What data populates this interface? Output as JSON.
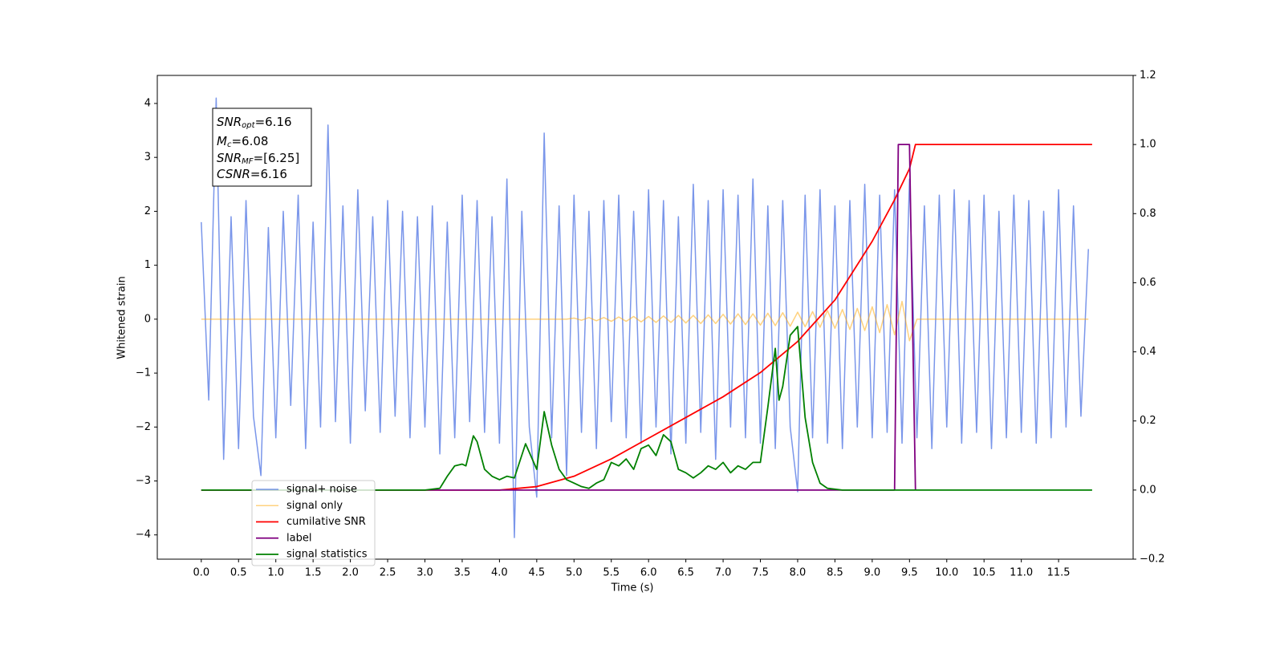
{
  "chart_data": {
    "type": "line",
    "x_label": "Time (s)",
    "y_label": "Whitened strain",
    "xlim": [
      -0.59,
      12.5
    ],
    "ylim": [
      -4.45,
      4.52
    ],
    "y2lim": [
      -0.2,
      1.2
    ],
    "xticks": [
      {
        "value": 0,
        "label": "0.0"
      },
      0.5,
      {
        "value": 1,
        "label": "1.0"
      },
      1.5,
      {
        "value": 2,
        "label": "2.0"
      },
      2.5,
      {
        "value": 3,
        "label": "3.0"
      },
      3.5,
      {
        "value": 4,
        "label": "4.0"
      },
      4.5,
      {
        "value": 5,
        "label": "5.0"
      },
      5.5,
      {
        "value": 6,
        "label": "6.0"
      },
      6.5,
      {
        "value": 7,
        "label": "7.0"
      },
      7.5,
      {
        "value": 8,
        "label": "8.0"
      },
      8.5,
      {
        "value": 9,
        "label": "9.0"
      },
      9.5,
      {
        "value": 10,
        "label": "10.0"
      },
      10.5,
      {
        "value": 11,
        "label": "11.0"
      },
      11.5
    ],
    "yticks": [
      {
        "value": -4,
        "label": "−4"
      },
      {
        "value": -3,
        "label": "−3"
      },
      {
        "value": -2,
        "label": "−2"
      },
      {
        "value": -1,
        "label": "−1"
      },
      0,
      1,
      2,
      3,
      4
    ],
    "y2ticks": [
      {
        "value": -0.2,
        "label": "−0.2"
      },
      {
        "value": 0,
        "label": "0.0"
      },
      0.2,
      0.4,
      0.6,
      0.8,
      {
        "value": 1,
        "label": "1.0"
      },
      1.2
    ],
    "grid": false,
    "legend": "lower left",
    "annotations": [
      {
        "name": "SNR",
        "sub": "opt",
        "text": "=6.16"
      },
      {
        "name": "M",
        "sub": "c",
        "text": "=6.08"
      },
      {
        "name": "SNR",
        "sub": "MF",
        "text": "=[6.25]"
      },
      {
        "name": "CSNR",
        "text": "=6.16"
      }
    ],
    "x": [
      0,
      0.1,
      0.2,
      0.3,
      0.4,
      0.5,
      0.6,
      0.7,
      0.8,
      0.9,
      1,
      1.1,
      1.2,
      1.3,
      1.4,
      1.5,
      1.6,
      1.7,
      1.8,
      1.9,
      2,
      2.1,
      2.2,
      2.3,
      2.4,
      2.5,
      2.6,
      2.7,
      2.8,
      2.9,
      3,
      3.1,
      3.2,
      3.3,
      3.4,
      3.5,
      3.6,
      3.7,
      3.8,
      3.9,
      4,
      4.1,
      4.2,
      4.3,
      4.4,
      4.5,
      4.6,
      4.7,
      4.8,
      4.9,
      5,
      5.1,
      5.2,
      5.3,
      5.4,
      5.5,
      5.6,
      5.7,
      5.8,
      5.9,
      6,
      6.1,
      6.2,
      6.3,
      6.4,
      6.5,
      6.6,
      6.7,
      6.8,
      6.9,
      7,
      7.1,
      7.2,
      7.3,
      7.4,
      7.5,
      7.6,
      7.7,
      7.8,
      7.9,
      8,
      8.1,
      8.2,
      8.3,
      8.4,
      8.5,
      8.6,
      8.7,
      8.8,
      8.9,
      9,
      9.1,
      9.2,
      9.3,
      9.4,
      9.5,
      9.6,
      9.7,
      9.8,
      9.9,
      10,
      10.1,
      10.2,
      10.3,
      10.4,
      10.5,
      10.6,
      10.7,
      10.8,
      10.9,
      11,
      11.1,
      11.2,
      11.3,
      11.4,
      11.5,
      11.6,
      11.7,
      11.8,
      11.9
    ],
    "series": [
      {
        "name": "signal+ noise",
        "color": "royalblue",
        "axis": "y",
        "values": [
          1.8,
          -1.5,
          4.1,
          -2.6,
          1.9,
          -2.4,
          2.2,
          -1.8,
          -2.9,
          1.7,
          -2.2,
          2.0,
          -1.6,
          2.3,
          -2.4,
          1.8,
          -2.0,
          3.6,
          -1.9,
          2.1,
          -2.3,
          2.4,
          -1.7,
          1.9,
          -2.1,
          2.2,
          -1.8,
          2.0,
          -2.2,
          1.9,
          -2.0,
          2.1,
          -2.5,
          1.8,
          -2.2,
          2.3,
          -1.9,
          2.2,
          -2.1,
          1.9,
          -2.3,
          2.6,
          -4.05,
          2.0,
          -2.0,
          -3.3,
          3.45,
          -2.2,
          2.1,
          -2.9,
          2.3,
          -2.1,
          2.0,
          -2.4,
          2.2,
          -1.9,
          2.3,
          -2.2,
          2.0,
          -2.3,
          2.4,
          -2.0,
          2.2,
          -2.5,
          1.9,
          -2.3,
          2.5,
          -2.1,
          2.2,
          -2.6,
          2.4,
          -2.0,
          2.3,
          -2.2,
          2.6,
          -2.3,
          2.1,
          -2.4,
          2.2,
          -2.0,
          -3.2,
          2.3,
          -2.2,
          2.4,
          -2.3,
          2.1,
          -2.4,
          2.2,
          -2.0,
          2.5,
          -2.2,
          2.3,
          -2.1,
          2.4,
          -2.3,
          2.6,
          -2.2,
          2.1,
          -2.4,
          2.3,
          -2.0,
          2.4,
          -2.3,
          2.2,
          -2.1,
          2.3,
          -2.4,
          2.0,
          -2.2,
          2.3,
          -2.1,
          2.2,
          -2.3,
          2.0,
          -2.2,
          2.4,
          -2.0,
          2.1,
          -1.8,
          1.3
        ]
      },
      {
        "name": "signal only",
        "color": "orange",
        "axis": "y",
        "values": [
          0,
          0,
          0,
          0,
          0,
          0,
          0,
          0,
          0,
          0,
          0,
          0,
          0,
          0,
          0,
          0,
          0,
          0,
          0,
          0,
          0,
          0,
          0,
          0,
          0,
          0,
          0,
          0,
          0,
          0,
          0,
          0,
          0,
          0,
          0,
          0,
          0,
          0,
          0,
          0,
          0,
          0,
          0,
          0,
          0,
          0,
          0,
          0,
          0,
          0,
          0.02,
          -0.02,
          0.03,
          -0.03,
          0.03,
          -0.04,
          0.04,
          -0.04,
          0.05,
          -0.05,
          0.05,
          -0.06,
          0.06,
          -0.06,
          0.07,
          -0.07,
          0.07,
          -0.08,
          0.08,
          -0.08,
          0.09,
          -0.09,
          0.1,
          -0.1,
          0.1,
          -0.11,
          0.11,
          -0.12,
          0.12,
          -0.13,
          0.13,
          -0.14,
          0.14,
          -0.15,
          0.16,
          -0.17,
          0.18,
          -0.19,
          0.2,
          -0.21,
          0.23,
          -0.25,
          0.27,
          -0.29,
          0.33,
          -0.4,
          0,
          0,
          0,
          0,
          0,
          0,
          0,
          0,
          0,
          0,
          0,
          0,
          0,
          0,
          0,
          0,
          0,
          0,
          0,
          0,
          0,
          0,
          0,
          0
        ]
      },
      {
        "name": "cumilative SNR",
        "color": "red",
        "axis": "y2",
        "x": [
          0,
          4.0,
          4.5,
          5,
          5.5,
          6,
          6.5,
          7,
          7.5,
          8,
          8.5,
          9,
          9.3,
          9.5,
          9.58,
          11.95
        ],
        "values": [
          0,
          0,
          0.01,
          0.04,
          0.09,
          0.15,
          0.21,
          0.27,
          0.34,
          0.43,
          0.55,
          0.72,
          0.84,
          0.93,
          1.0,
          1.0
        ]
      },
      {
        "name": "label",
        "color": "purple",
        "axis": "y2",
        "x": [
          0,
          9.3,
          9.35,
          9.5,
          9.58
        ],
        "values": [
          0,
          0,
          1,
          1,
          0
        ]
      },
      {
        "name": "signal statistics",
        "color": "green",
        "axis": "y2",
        "x": [
          0,
          3.0,
          3.2,
          3.3,
          3.4,
          3.5,
          3.55,
          3.65,
          3.7,
          3.8,
          3.9,
          4.0,
          4.1,
          4.2,
          4.35,
          4.5,
          4.6,
          4.7,
          4.8,
          4.9,
          5.0,
          5.1,
          5.2,
          5.3,
          5.4,
          5.5,
          5.6,
          5.7,
          5.8,
          5.9,
          6.0,
          6.1,
          6.2,
          6.3,
          6.4,
          6.5,
          6.6,
          6.7,
          6.8,
          6.9,
          7.0,
          7.1,
          7.2,
          7.3,
          7.4,
          7.5,
          7.6,
          7.7,
          7.75,
          7.8,
          7.9,
          8.0,
          8.1,
          8.2,
          8.3,
          8.4,
          8.6,
          11.95
        ],
        "values": [
          0,
          0,
          0.005,
          0.04,
          0.07,
          0.075,
          0.07,
          0.157,
          0.14,
          0.06,
          0.04,
          0.03,
          0.04,
          0.035,
          0.134,
          0.06,
          0.227,
          0.13,
          0.06,
          0.03,
          0.02,
          0.01,
          0.005,
          0.02,
          0.03,
          0.08,
          0.07,
          0.09,
          0.06,
          0.12,
          0.13,
          0.1,
          0.16,
          0.14,
          0.06,
          0.05,
          0.035,
          0.05,
          0.07,
          0.06,
          0.08,
          0.05,
          0.07,
          0.06,
          0.08,
          0.08,
          0.24,
          0.41,
          0.26,
          0.3,
          0.448,
          0.473,
          0.21,
          0.08,
          0.02,
          0.005,
          0,
          0
        ]
      }
    ]
  }
}
